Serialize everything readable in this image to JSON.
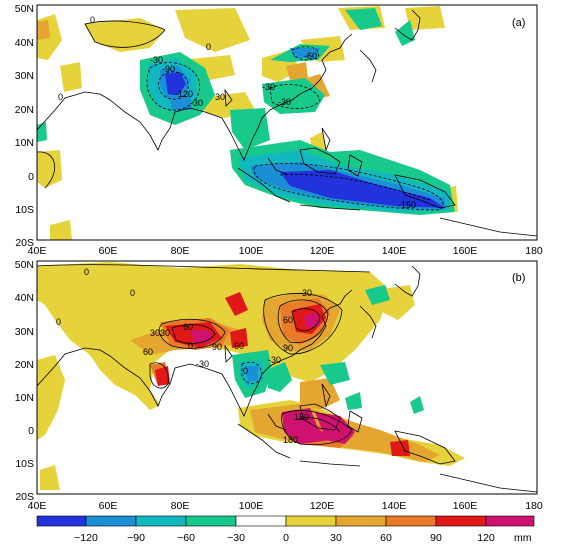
{
  "figure": {
    "panels": [
      {
        "label": "(a)",
        "lat_ticks": [
          "50N",
          "40N",
          "30N",
          "20N",
          "10N",
          "0",
          "10S",
          "20S"
        ],
        "contour_labels": [
          "0",
          "0",
          "0",
          "-30",
          "-90",
          "-120",
          "-30",
          "-60",
          "-30",
          "30",
          "-30",
          "-150"
        ]
      },
      {
        "label": "(b)",
        "lat_ticks": [
          "50N",
          "40N",
          "30N",
          "20N",
          "10N",
          "0",
          "10S",
          "20S"
        ],
        "contour_labels": [
          "0",
          "0",
          "0",
          "30",
          "60",
          "30",
          "60",
          "90",
          "60",
          "90",
          "30",
          "0",
          "60",
          "-30",
          "-30",
          "0",
          "150",
          "180"
        ]
      }
    ],
    "lon_ticks": [
      "40E",
      "60E",
      "80E",
      "100E",
      "120E",
      "140E",
      "160E",
      "180"
    ]
  },
  "colorbar": {
    "ticks": [
      "−120",
      "−90",
      "−60",
      "−30",
      "0",
      "30",
      "60",
      "90",
      "120"
    ],
    "unit": "mm",
    "colors": [
      "#2233dd",
      "#1a8fd6",
      "#12b8c0",
      "#17c98a",
      "#ffffff",
      "#e6d23a",
      "#e4a630",
      "#e87a28",
      "#e01818",
      "#cf1170"
    ]
  }
}
